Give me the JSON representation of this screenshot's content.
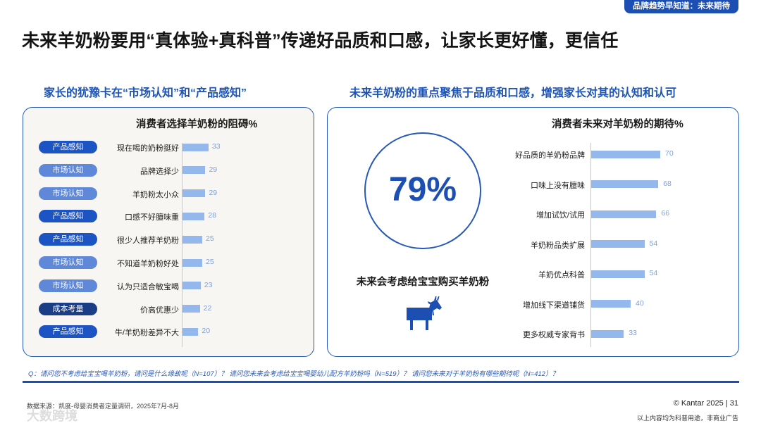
{
  "header": {
    "tag": "品牌趋势早知道：未来期待",
    "title": "未来羊奶粉要用“真体验+真科普”传递好品质和口感，让家长更好懂，更信任"
  },
  "left_section": {
    "subtitle": "家长的犹豫卡在“市场认知”和“产品感知”"
  },
  "right_section": {
    "subtitle": "未来羊奶粉的重点聚焦于品质和口感，增强家长对其的认知和认可",
    "big_stat": "79%",
    "big_stat_caption": "未来会考虑给宝宝购买羊奶粉",
    "icon": "goat-icon"
  },
  "colors": {
    "accent": "#1d4fb3",
    "bar": "#94b7ec",
    "value_label": "#7fa2d8",
    "pill_product": "#1d54c4",
    "pill_market": "#5f88d8",
    "pill_cost": "#1a3d86"
  },
  "chart_data": [
    {
      "type": "bar",
      "orientation": "horizontal",
      "title": "消费者选择羊奶粉的阻碍%",
      "categories": [
        "现在喝的奶粉挺好",
        "品牌选择少",
        "羊奶粉太小众",
        "口感不好膻味重",
        "很少人推荐羊奶粉",
        "不知道羊奶粉好处",
        "认为只适合敏宝喝",
        "价高优惠少",
        "牛/羊奶粉差异不大"
      ],
      "values": [
        33,
        29,
        29,
        28,
        25,
        25,
        23,
        22,
        20
      ],
      "group_tags": [
        "产品感知",
        "市场认知",
        "市场认知",
        "产品感知",
        "产品感知",
        "市场认知",
        "市场认知",
        "成本考量",
        "产品感知"
      ],
      "xlim": [
        0,
        100
      ]
    },
    {
      "type": "bar",
      "orientation": "horizontal",
      "title": "消费者未来对羊奶粉的期待%",
      "categories": [
        "好品质的羊奶粉品牌",
        "口味上没有膻味",
        "增加试饮/试用",
        "羊奶粉品类扩展",
        "羊奶优点科普",
        "增加线下渠道铺货",
        "更多权威专家背书"
      ],
      "values": [
        70,
        68,
        66,
        54,
        54,
        40,
        33
      ],
      "xlim": [
        0,
        100
      ]
    }
  ],
  "footer": {
    "question_note": "Q：请问您不考虑给宝宝喝羊奶粉，请问是什么缘故呢（N=107）？ 请问您未来会考虑给宝宝喝婴幼儿配方羊奶粉吗（N=519）？ 请问您未来对于羊奶粉有哪些期待呢（N=412）？",
    "source": "数据来源：凯度-母婴消费者定量调研，2025年7月-8月",
    "copyright": "© Kantar 2025 | 31",
    "disclaimer": "以上内容均为科普用途，非商业广告",
    "watermark": "大数跨境"
  }
}
